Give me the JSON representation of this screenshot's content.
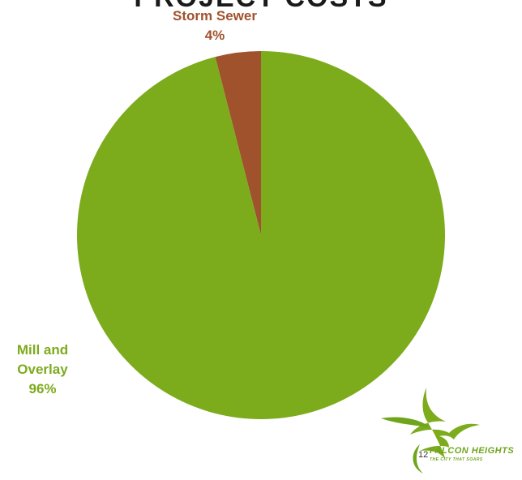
{
  "chart_data": {
    "type": "pie",
    "title": "PROJECT COSTS",
    "slices": [
      {
        "name": "Storm Sewer",
        "value": 4,
        "label": "4%",
        "color": "#a0522d"
      },
      {
        "name": "Mill and Overlay",
        "value": 96,
        "label": "96%",
        "color": "#7cab1c"
      }
    ],
    "legend": "none"
  },
  "labels": {
    "storm_name": "Storm Sewer",
    "storm_pct": "4%",
    "mill_name_1": "Mill and",
    "mill_name_2": "Overlay",
    "mill_pct": "96%"
  },
  "logo": {
    "name": "FALCON HEIGHTS",
    "tagline": "THE CITY THAT SOARS",
    "icon": "falcon-bird-icon",
    "color": "#6fa51d"
  },
  "page_number": "12"
}
